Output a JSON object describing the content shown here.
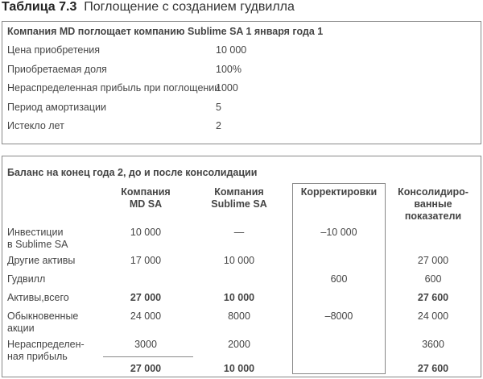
{
  "title": {
    "number": "Таблица 7.3",
    "text": "Поглощение с созданием гудвилла"
  },
  "terms": {
    "heading": "Компания MD поглощает компанию Sublime SA 1 января года 1",
    "rows": [
      {
        "label": "Цена приобретения",
        "value": "10 000"
      },
      {
        "label": "Приобретаемая доля",
        "value": "100%"
      },
      {
        "label": "Нераспределенная прибыль при поглощении",
        "value": "1000"
      },
      {
        "label": "Период амортизации",
        "value": "5"
      },
      {
        "label": "Истекло лет",
        "value": "2"
      }
    ]
  },
  "balance": {
    "heading": "Баланс на конец года 2, до и после консолидации",
    "columns": [
      "Компания\nMD SA",
      "Компания\nSublime SA",
      "Корректировки",
      "Консолидиро-\nванные\nпоказатели"
    ],
    "rows": [
      {
        "label": "Инвестиции\nв Sublime SA",
        "md": "10 000",
        "sublime": "—",
        "adj": "–10 000",
        "cons": ""
      },
      {
        "label": "Другие активы",
        "md": "17 000",
        "sublime": "10 000",
        "adj": "",
        "cons": "27 000"
      },
      {
        "label": "Гудвилл",
        "md": "",
        "sublime": "",
        "adj": "600",
        "cons": "600"
      },
      {
        "label": "Активы,всего",
        "md": "27 000",
        "sublime": "10 000",
        "adj": "",
        "cons": "27 600",
        "bold": true
      },
      {
        "label": "Обыкновенные\nакции",
        "md": "24 000",
        "sublime": "8000",
        "adj": "–8000",
        "cons": "24 000"
      },
      {
        "label": "Нераспределен-\nная прибыль",
        "md": "3000",
        "sublime": "2000",
        "adj": "",
        "cons": "3600"
      },
      {
        "label": "",
        "md": "27 000",
        "sublime": "10 000",
        "adj": "",
        "cons": "27 600",
        "bold": true
      }
    ]
  }
}
